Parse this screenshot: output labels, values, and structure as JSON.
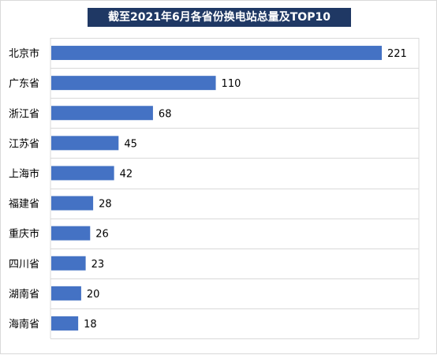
{
  "chart_data": {
    "type": "bar",
    "orientation": "horizontal",
    "title": "截至2021年6月各省份换电站总量及TOP10",
    "categories": [
      "北京市",
      "广东省",
      "浙江省",
      "江苏省",
      "上海市",
      "福建省",
      "重庆市",
      "四川省",
      "湖南省",
      "海南省"
    ],
    "values": [
      221,
      110,
      68,
      45,
      42,
      28,
      26,
      23,
      20,
      18
    ],
    "xlim": [
      0,
      221
    ],
    "grid": "horizontal lines between categories",
    "bar_color": "#4472c4",
    "title_bg_color": "#1f3864"
  }
}
